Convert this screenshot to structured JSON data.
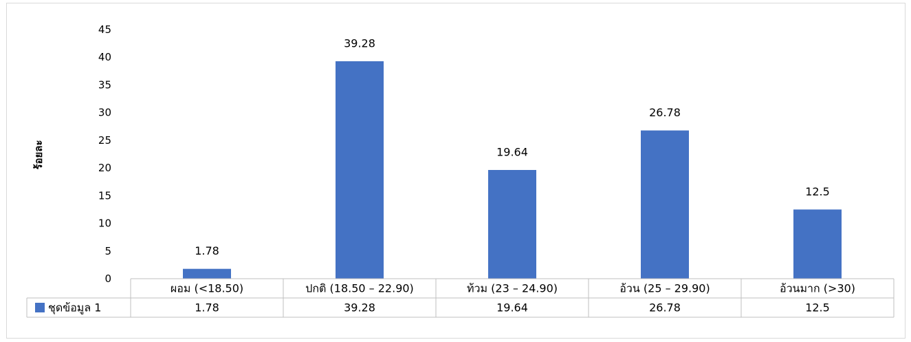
{
  "chart_data": {
    "type": "bar",
    "title": "",
    "xlabel": "",
    "ylabel": "ร้อยละ",
    "categories": [
      "ผอม (<18.50)",
      "ปกติ (18.50 – 22.90)",
      "ท้วม (23 – 24.90)",
      "อ้วน (25 – 29.90)",
      "อ้วนมาก (>30)"
    ],
    "series": [
      {
        "name": "ชุดข้อมูล 1",
        "values": [
          1.78,
          39.28,
          19.64,
          26.78,
          12.5
        ],
        "color": "#4472c4"
      }
    ],
    "data_labels": [
      "1.78",
      "39.28",
      "19.64",
      "26.78",
      "12.5"
    ],
    "y_ticks": [
      "0",
      "5",
      "10",
      "15",
      "20",
      "25",
      "30",
      "35",
      "40",
      "45"
    ],
    "ylim": [
      0,
      45
    ],
    "grid": false,
    "legend": "data-table",
    "data_table": true
  }
}
